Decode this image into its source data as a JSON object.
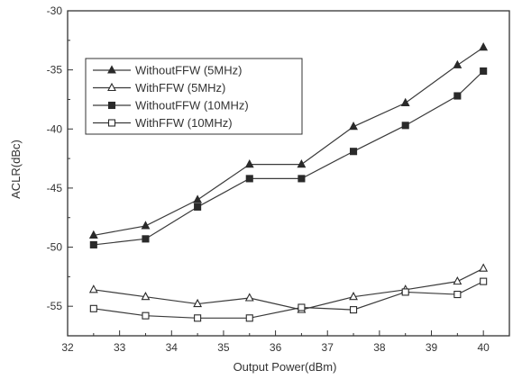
{
  "chart_data": {
    "type": "line",
    "xlabel": "Output Power(dBm)",
    "ylabel": "ACLR(dBc)",
    "xlim": [
      32,
      40.5
    ],
    "ylim": [
      -57.5,
      -30
    ],
    "x_ticks": [
      32,
      33,
      34,
      35,
      36,
      37,
      38,
      39,
      40
    ],
    "y_ticks": [
      -55,
      -50,
      -45,
      -40,
      -35,
      -30
    ],
    "grid": false,
    "legend_position": "upper-left",
    "x": [
      32.5,
      33.5,
      34.5,
      35.5,
      36.5,
      37.5,
      38.5,
      39.5,
      40
    ],
    "series": [
      {
        "name": "WithoutFFW (5MHz)",
        "marker": "filled-triangle",
        "values": [
          -49.0,
          -48.2,
          -46.0,
          -43.0,
          -43.0,
          -39.8,
          -37.8,
          -34.6,
          -33.1
        ]
      },
      {
        "name": "WithFFW (5MHz)",
        "marker": "open-triangle",
        "values": [
          -53.6,
          -54.2,
          -54.8,
          -54.3,
          -55.3,
          -54.2,
          -53.6,
          -52.9,
          -51.8
        ]
      },
      {
        "name": "WithoutFFW (10MHz)",
        "marker": "filled-square",
        "values": [
          -49.8,
          -49.3,
          -46.6,
          -44.2,
          -44.2,
          -41.9,
          -39.7,
          -37.2,
          -35.1
        ]
      },
      {
        "name": "WithFFW (10MHz)",
        "marker": "open-square",
        "values": [
          -55.2,
          -55.8,
          -56.0,
          -56.0,
          -55.1,
          -55.3,
          -53.8,
          -54.0,
          -52.9
        ]
      }
    ]
  },
  "colors": {
    "line": "#3a3a3a",
    "marker": "#2a2a2a",
    "axis": "#333333",
    "background": "#ffffff"
  }
}
